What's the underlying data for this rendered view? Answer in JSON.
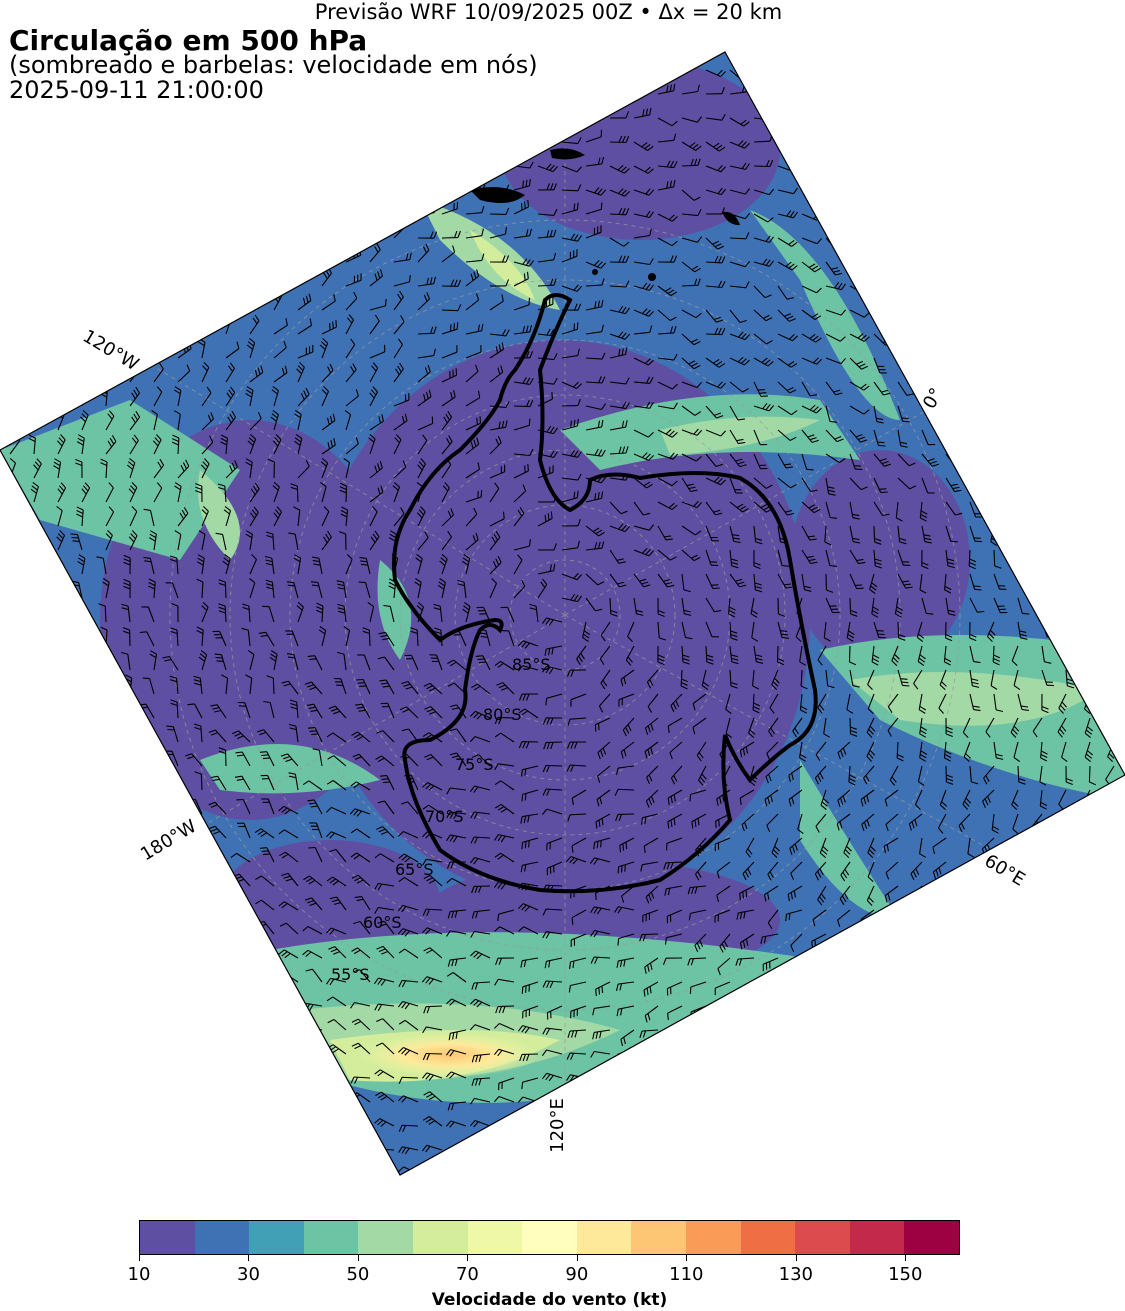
{
  "header": {
    "run_info": "Previsão WRF 10/09/2025 00Z • Δx = 20 km",
    "title": "Circulação em 500 hPa",
    "subtitle": "(sombreado e barbelas: velocidade em nós)",
    "valid_time": "2025-09-11 21:00:00"
  },
  "map": {
    "projection": "south-polar stereographic",
    "longitude_labels": [
      "120°W",
      "0°",
      "180°W",
      "60°E",
      "120°E"
    ],
    "latitude_labels": [
      "85°S",
      "80°S",
      "75°S",
      "70°S",
      "65°S",
      "60°S",
      "55°S"
    ],
    "coastline_color": "#000000",
    "gridline_style": "dashed grey",
    "barb_color": "#000000"
  },
  "colorbar": {
    "label": "Velocidade do vento (kt)",
    "tick_labels": [
      "10",
      "30",
      "50",
      "70",
      "90",
      "110",
      "130",
      "150"
    ],
    "range": [
      10,
      160
    ],
    "bin_width": 10,
    "colors": [
      "#5e4fa2",
      "#3f72b5",
      "#41a0b5",
      "#6cc4a4",
      "#a2d9a4",
      "#d3ed9c",
      "#eff8a6",
      "#fffebe",
      "#fee99a",
      "#fdc675",
      "#fa9c58",
      "#f06e44",
      "#dc4b4e",
      "#c3294a",
      "#9e0142"
    ]
  }
}
